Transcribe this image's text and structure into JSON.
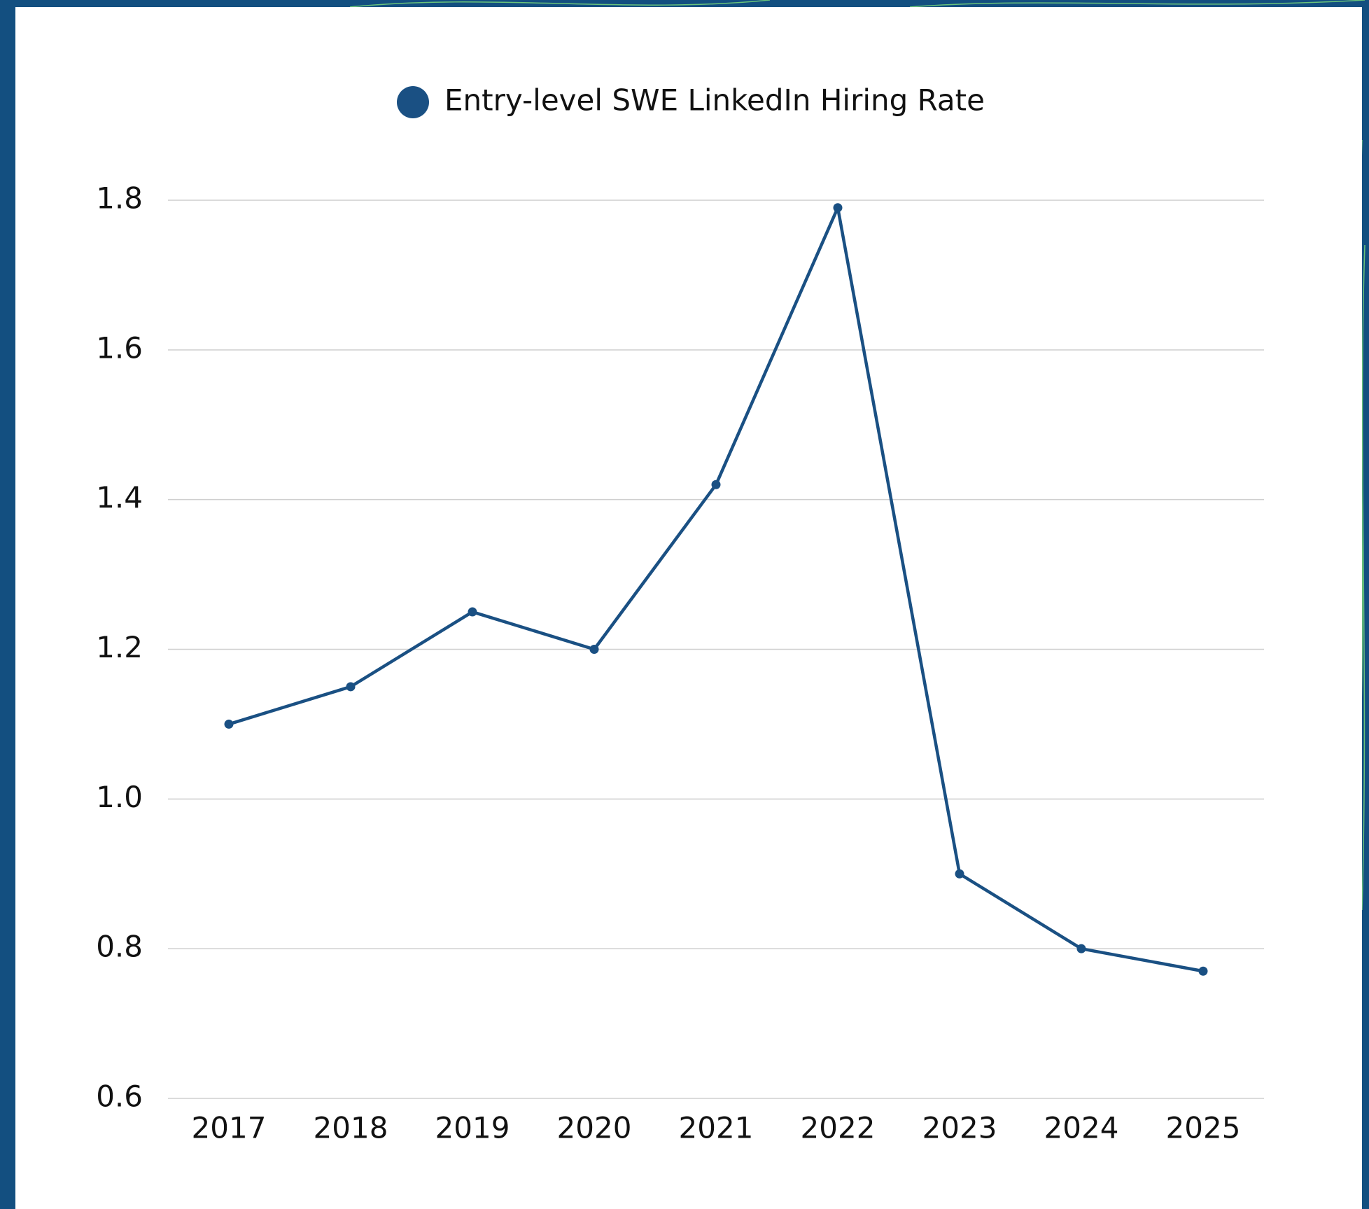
{
  "chart_data": {
    "type": "line",
    "categories": [
      "2017",
      "2018",
      "2019",
      "2020",
      "2021",
      "2022",
      "2023",
      "2024",
      "2025"
    ],
    "series": [
      {
        "name": "Entry-level SWE LinkedIn Hiring Rate",
        "color": "#1a5083",
        "values": [
          1.1,
          1.15,
          1.25,
          1.2,
          1.42,
          1.79,
          0.9,
          0.8,
          0.77
        ]
      }
    ],
    "ylim": [
      0.6,
      1.8
    ],
    "yticks": [
      {
        "value": 0.6,
        "label": "0.6"
      },
      {
        "value": 0.8,
        "label": "0.8"
      },
      {
        "value": 1.0,
        "label": "1.0"
      },
      {
        "value": 1.2,
        "label": "1.2"
      },
      {
        "value": 1.4,
        "label": "1.4"
      },
      {
        "value": 1.6,
        "label": "1.6"
      },
      {
        "value": 1.8,
        "label": "1.8"
      }
    ],
    "grid": true,
    "legend": "top"
  }
}
